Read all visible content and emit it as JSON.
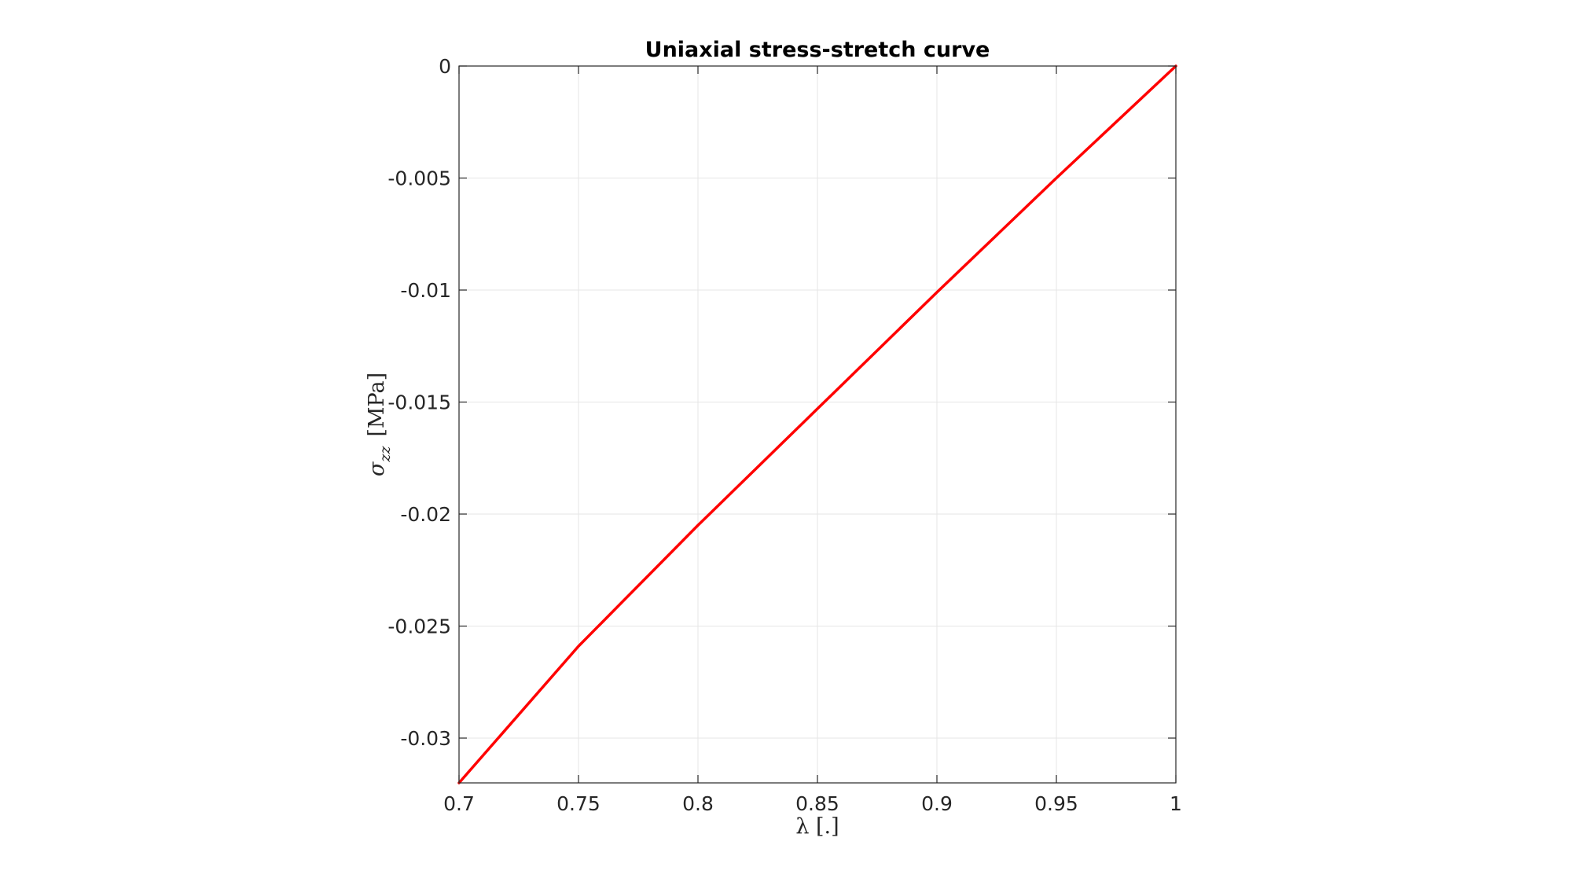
{
  "chart_data": {
    "type": "line",
    "title": "Uniaxial stress-stretch curve",
    "xlabel": "λ [.]",
    "ylabel": {
      "symbol": "σ",
      "subscript": "zz",
      "unit": "[MPa]"
    },
    "xlim": [
      0.7,
      1
    ],
    "ylim": [
      -0.032,
      0
    ],
    "xticks": [
      0.7,
      0.75,
      0.8,
      0.85,
      0.9,
      0.95,
      1
    ],
    "xtick_labels": [
      "0.7",
      "0.75",
      "0.8",
      "0.85",
      "0.9",
      "0.95",
      "1"
    ],
    "yticks": [
      0,
      -0.005,
      -0.01,
      -0.015,
      -0.02,
      -0.025,
      -0.03
    ],
    "ytick_labels": [
      "0",
      "-0.005",
      "-0.01",
      "-0.015",
      "-0.02",
      "-0.025",
      "-0.03"
    ],
    "grid": true,
    "series": [
      {
        "x": [
          0.7,
          0.75,
          0.8,
          0.85,
          0.9,
          0.95,
          1
        ],
        "y": [
          -0.032,
          -0.0259,
          -0.0205,
          -0.0153,
          -0.0101,
          -0.005,
          0
        ]
      }
    ]
  },
  "colors": {
    "line": "#ff0000",
    "grid": "#e6e6e6",
    "axis": "#262626"
  }
}
